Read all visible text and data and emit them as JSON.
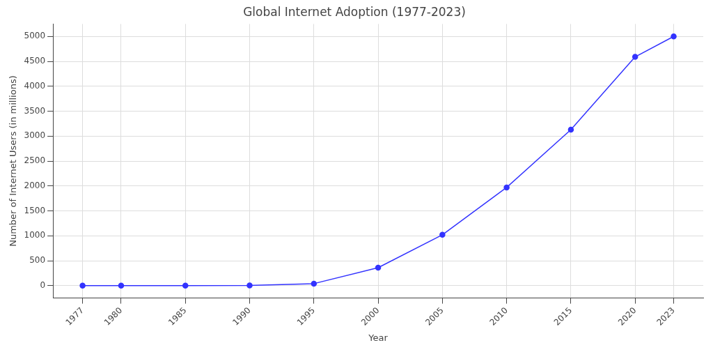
{
  "chart_data": {
    "type": "line",
    "title": "Global Internet Adoption (1977-2023)",
    "xlabel": "Year",
    "ylabel": "Number of Internet Users (in millions)",
    "x": [
      1977,
      1980,
      1985,
      1990,
      1995,
      2000,
      2005,
      2010,
      2015,
      2020,
      2023
    ],
    "series": [
      {
        "color": "#3333ff",
        "values": [
          0,
          0,
          0,
          3,
          40,
          360,
          1020,
          1970,
          3130,
          4590,
          5000
        ]
      }
    ],
    "xlim": [
      1974.7,
      2025.3
    ],
    "xticks": [
      1977,
      1980,
      1985,
      1990,
      1995,
      2000,
      2005,
      2010,
      2015,
      2020,
      2023
    ],
    "ylim": [
      -250,
      5250
    ],
    "yticks": [
      0,
      500,
      1000,
      1500,
      2000,
      2500,
      3000,
      3500,
      4000,
      4500,
      5000
    ],
    "grid": true,
    "marker": "circle",
    "line_style": "solid",
    "legend": false
  }
}
